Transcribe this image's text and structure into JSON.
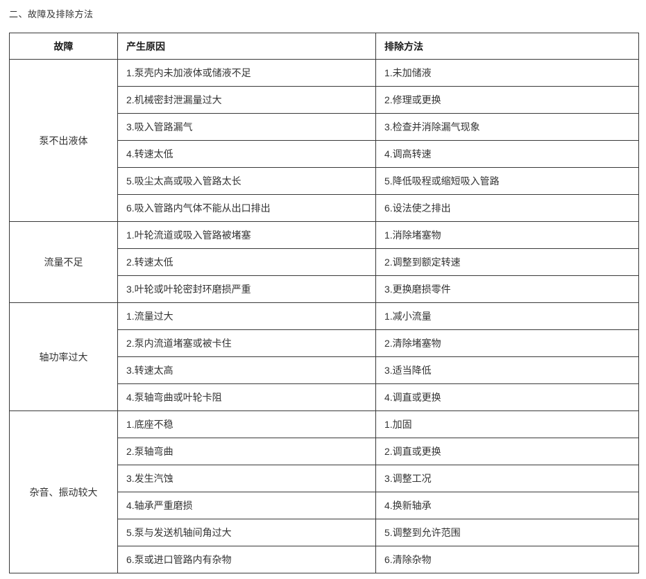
{
  "page": {
    "title": "二、故障及排除方法"
  },
  "table": {
    "headers": [
      "故障",
      "产生原因",
      "排除方法"
    ],
    "sections": [
      {
        "fault": "泵不出液体",
        "rows": [
          {
            "cause": "1.泵壳内未加液体或储液不足",
            "remedy": "1.未加储液"
          },
          {
            "cause": "2.机械密封泄漏量过大",
            "remedy": "2.修理或更换"
          },
          {
            "cause": "3.吸入管路漏气",
            "remedy": "3.检查并消除漏气现象"
          },
          {
            "cause": "4.转速太低",
            "remedy": "4.调高转速"
          },
          {
            "cause": "5.吸尘太高或吸入管路太长",
            "remedy": "5.降低吸程或缩短吸入管路"
          },
          {
            "cause": "6.吸入管路内气体不能从出口排出",
            "remedy": "6.设法使之排出"
          }
        ]
      },
      {
        "fault": "流量不足",
        "rows": [
          {
            "cause": "1.叶轮流道或吸入管路被堵塞",
            "remedy": "1.消除堵塞物"
          },
          {
            "cause": "2.转速太低",
            "remedy": "2.调整到额定转速"
          },
          {
            "cause": "3.叶轮或叶轮密封环磨损严重",
            "remedy": "3.更换磨损零件"
          }
        ]
      },
      {
        "fault": "轴功率过大",
        "rows": [
          {
            "cause": "1.流量过大",
            "remedy": "1.减小流量"
          },
          {
            "cause": "2.泵内流道堵塞或被卡住",
            "remedy": "2.清除堵塞物"
          },
          {
            "cause": "3.转速太高",
            "remedy": "3.适当降低"
          },
          {
            "cause": "4.泵轴弯曲或叶轮卡阻",
            "remedy": "4.调直或更换"
          }
        ]
      },
      {
        "fault": "杂音、振动较大",
        "rows": [
          {
            "cause": "1.底座不稳",
            "remedy": "1.加固"
          },
          {
            "cause": "2.泵轴弯曲",
            "remedy": "2.调直或更换"
          },
          {
            "cause": "3.发生汽蚀",
            "remedy": "3.调整工况"
          },
          {
            "cause": "4.轴承严重磨损",
            "remedy": "4.换新轴承"
          },
          {
            "cause": "5.泵与发送机轴间角过大",
            "remedy": "5.调整到允许范围"
          },
          {
            "cause": "6.泵或进口管路内有杂物",
            "remedy": "6.清除杂物"
          }
        ]
      }
    ]
  },
  "colors": {
    "background": "#ffffff",
    "text": "#333333",
    "header_text": "#1a1a1a",
    "border": "#383838"
  }
}
